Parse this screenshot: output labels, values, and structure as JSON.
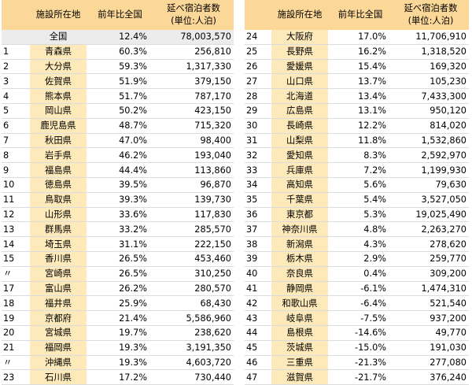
{
  "headers": {
    "rank": "",
    "prefecture": "施設所在地",
    "yoy": "前年比全国",
    "stays_line1": "延べ宿泊者数",
    "stays_line2": "(単位:人泊)"
  },
  "left_rows": [
    {
      "rank": "",
      "name": "全国",
      "pct": "12.4%",
      "val": "78,003,570"
    },
    {
      "rank": "1",
      "name": "青森県",
      "pct": "60.3%",
      "val": "256,810"
    },
    {
      "rank": "2",
      "name": "大分県",
      "pct": "59.3%",
      "val": "1,317,330"
    },
    {
      "rank": "3",
      "name": "佐賀県",
      "pct": "51.9%",
      "val": "379,150"
    },
    {
      "rank": "4",
      "name": "熊本県",
      "pct": "51.7%",
      "val": "787,170"
    },
    {
      "rank": "5",
      "name": "岡山県",
      "pct": "50.2%",
      "val": "423,150"
    },
    {
      "rank": "6",
      "name": "鹿児島県",
      "pct": "48.7%",
      "val": "715,320"
    },
    {
      "rank": "7",
      "name": "秋田県",
      "pct": "47.0%",
      "val": "98,400"
    },
    {
      "rank": "8",
      "name": "岩手県",
      "pct": "46.2%",
      "val": "193,040"
    },
    {
      "rank": "9",
      "name": "福島県",
      "pct": "44.4%",
      "val": "113,860"
    },
    {
      "rank": "10",
      "name": "徳島県",
      "pct": "39.5%",
      "val": "96,870"
    },
    {
      "rank": "11",
      "name": "鳥取県",
      "pct": "39.3%",
      "val": "139,730"
    },
    {
      "rank": "12",
      "name": "山形県",
      "pct": "33.6%",
      "val": "117,830"
    },
    {
      "rank": "13",
      "name": "群馬県",
      "pct": "33.2%",
      "val": "285,570"
    },
    {
      "rank": "14",
      "name": "埼玉県",
      "pct": "31.1%",
      "val": "222,150"
    },
    {
      "rank": "15",
      "name": "香川県",
      "pct": "26.5%",
      "val": "453,460"
    },
    {
      "rank": "〃",
      "name": "宮崎県",
      "pct": "26.5%",
      "val": "310,250"
    },
    {
      "rank": "17",
      "name": "富山県",
      "pct": "26.2%",
      "val": "280,570"
    },
    {
      "rank": "18",
      "name": "福井県",
      "pct": "25.9%",
      "val": "68,430"
    },
    {
      "rank": "19",
      "name": "京都府",
      "pct": "21.4%",
      "val": "5,586,960"
    },
    {
      "rank": "20",
      "name": "宮城県",
      "pct": "19.7%",
      "val": "238,620"
    },
    {
      "rank": "21",
      "name": "福岡県",
      "pct": "19.3%",
      "val": "3,191,350"
    },
    {
      "rank": "〃",
      "name": "沖縄県",
      "pct": "19.3%",
      "val": "4,603,720"
    },
    {
      "rank": "23",
      "name": "石川県",
      "pct": "17.2%",
      "val": "730,440"
    }
  ],
  "right_rows": [
    {
      "rank": "24",
      "name": "大阪府",
      "pct": "17.0%",
      "val": "11,706,910"
    },
    {
      "rank": "25",
      "name": "長野県",
      "pct": "16.2%",
      "val": "1,318,520"
    },
    {
      "rank": "26",
      "name": "愛媛県",
      "pct": "15.4%",
      "val": "169,320"
    },
    {
      "rank": "27",
      "name": "山口県",
      "pct": "13.7%",
      "val": "105,230"
    },
    {
      "rank": "28",
      "name": "北海道",
      "pct": "13.4%",
      "val": "7,433,300"
    },
    {
      "rank": "29",
      "name": "広島県",
      "pct": "13.1%",
      "val": "950,120"
    },
    {
      "rank": "30",
      "name": "長崎県",
      "pct": "12.2%",
      "val": "814,020"
    },
    {
      "rank": "31",
      "name": "山梨県",
      "pct": "11.8%",
      "val": "1,532,860"
    },
    {
      "rank": "32",
      "name": "愛知県",
      "pct": "8.3%",
      "val": "2,592,970"
    },
    {
      "rank": "33",
      "name": "兵庫県",
      "pct": "7.2%",
      "val": "1,199,930"
    },
    {
      "rank": "34",
      "name": "高知県",
      "pct": "5.6%",
      "val": "79,630"
    },
    {
      "rank": "35",
      "name": "千葉県",
      "pct": "5.4%",
      "val": "3,527,050"
    },
    {
      "rank": "36",
      "name": "東京都",
      "pct": "5.3%",
      "val": "19,025,490"
    },
    {
      "rank": "37",
      "name": "神奈川県",
      "pct": "4.8%",
      "val": "2,263,270"
    },
    {
      "rank": "38",
      "name": "新潟県",
      "pct": "4.3%",
      "val": "278,620"
    },
    {
      "rank": "39",
      "name": "栃木県",
      "pct": "2.9%",
      "val": "259,770"
    },
    {
      "rank": "40",
      "name": "奈良県",
      "pct": "0.4%",
      "val": "309,200"
    },
    {
      "rank": "41",
      "name": "静岡県",
      "pct": "-6.1%",
      "val": "1,474,310"
    },
    {
      "rank": "42",
      "name": "和歌山県",
      "pct": "-6.4%",
      "val": "521,540"
    },
    {
      "rank": "43",
      "name": "岐阜県",
      "pct": "-7.5%",
      "val": "937,200"
    },
    {
      "rank": "44",
      "name": "島根県",
      "pct": "-14.6%",
      "val": "49,770"
    },
    {
      "rank": "45",
      "name": "茨城県",
      "pct": "-15.0%",
      "val": "191,030"
    },
    {
      "rank": "46",
      "name": "三重県",
      "pct": "-21.3%",
      "val": "277,080"
    },
    {
      "rank": "47",
      "name": "滋賀県",
      "pct": "-21.7%",
      "val": "376,240"
    }
  ],
  "colors": {
    "header_bg": "#fbd798",
    "name_cell_bg": "#fde9b9",
    "national_row_bg": "#ececec"
  }
}
